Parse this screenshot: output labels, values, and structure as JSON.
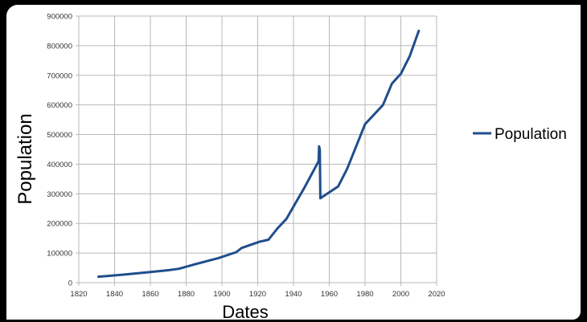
{
  "chart_data": {
    "type": "line",
    "title": "",
    "xlabel": "Dates",
    "ylabel": "Population",
    "xlim": [
      1820,
      2020
    ],
    "ylim": [
      0,
      900000
    ],
    "x_ticks": [
      "1820",
      "1840",
      "1860",
      "1880",
      "1900",
      "1920",
      "1940",
      "1960",
      "1980",
      "2000",
      "2020"
    ],
    "y_ticks": [
      "0",
      "100000",
      "200000",
      "300000",
      "400000",
      "500000",
      "600000",
      "700000",
      "800000",
      "900000"
    ],
    "grid": true,
    "legend_position": "right",
    "series": [
      {
        "name": "Population",
        "color": "#1f4e8c",
        "x": [
          1831,
          1845,
          1860,
          1870,
          1876,
          1885,
          1898,
          1908,
          1911,
          1921,
          1926,
          1931,
          1936,
          1946,
          1954,
          1954.3,
          1954.7,
          1955,
          1965,
          1970,
          1975,
          1980,
          1990,
          1995,
          2000,
          2005,
          2010
        ],
        "values": [
          20000,
          27000,
          36000,
          42000,
          47000,
          62000,
          83000,
          103000,
          117000,
          138000,
          145000,
          183000,
          215000,
          320000,
          410000,
          460000,
          450000,
          285000,
          325000,
          385000,
          460000,
          535000,
          600000,
          672000,
          705000,
          765000,
          850000
        ]
      }
    ]
  }
}
